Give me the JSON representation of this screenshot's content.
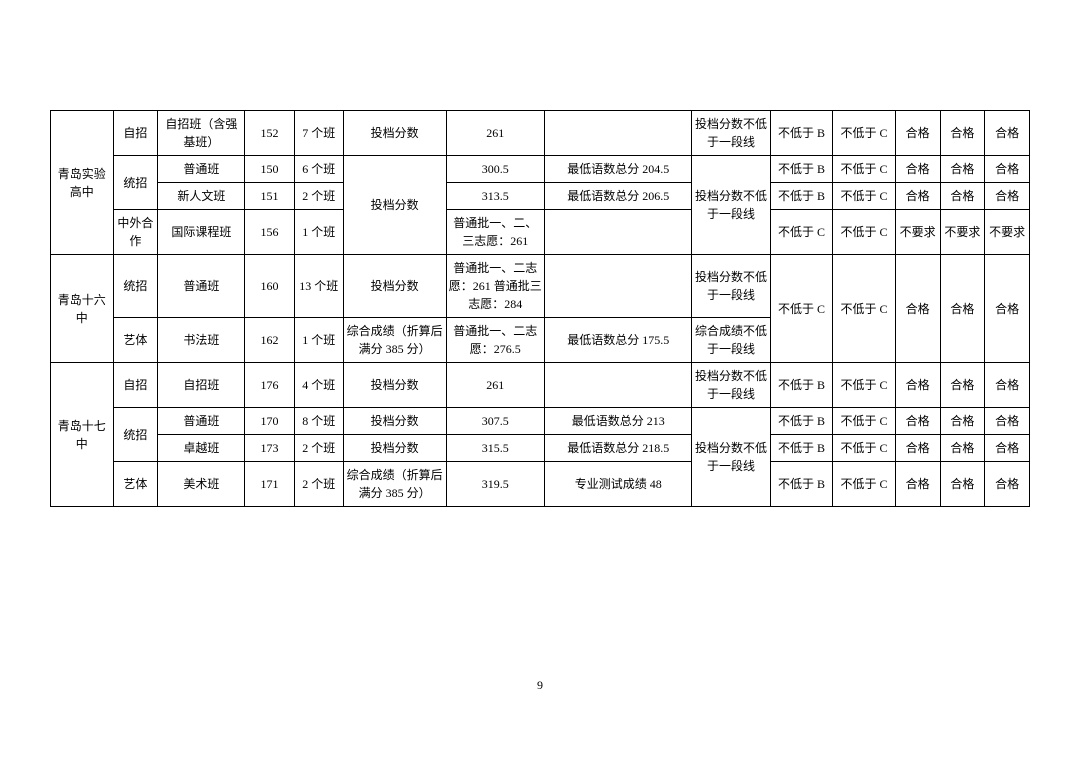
{
  "page_number": "9",
  "rows": [
    {
      "school": "青岛实验高中",
      "school_rowspan": 4,
      "type": "自招",
      "type_rowspan": 1,
      "class": "自招班（含强基班）",
      "code": "152",
      "count": "7 个班",
      "score_type": "投档分数",
      "score_type_rowspan": 1,
      "score": "261",
      "note": "",
      "req": "投档分数不低于一段线",
      "req_rowspan": 1,
      "g1": "不低于 B",
      "g1_rowspan": 1,
      "g2": "不低于 C",
      "g2_rowspan": 1,
      "p1": "合格",
      "p1_rowspan": 1,
      "p2": "合格",
      "p2_rowspan": 1,
      "p3": "合格",
      "p3_rowspan": 1
    },
    {
      "type": "统招",
      "type_rowspan": 2,
      "class": "普通班",
      "code": "150",
      "count": "6 个班",
      "score_type": "投档分数",
      "score_type_rowspan": 3,
      "score": "300.5",
      "note": "最低语数总分 204.5",
      "req": "投档分数不低于一段线",
      "req_rowspan": 3,
      "g1": "不低于 B",
      "g2": "不低于 C",
      "p1": "合格",
      "p2": "合格",
      "p3": "合格"
    },
    {
      "class": "新人文班",
      "code": "151",
      "count": "2 个班",
      "score": "313.5",
      "note": "最低语数总分 206.5",
      "g1": "不低于 B",
      "g2": "不低于 C",
      "p1": "合格",
      "p2": "合格",
      "p3": "合格"
    },
    {
      "type": "中外合作",
      "type_rowspan": 1,
      "class": "国际课程班",
      "code": "156",
      "count": "1 个班",
      "score": "普通批一、二、三志愿：261",
      "note": "",
      "g1": "不低于 C",
      "g2": "不低于 C",
      "p1": "不要求",
      "p2": "不要求",
      "p3": "不要求"
    },
    {
      "school": "青岛十六中",
      "school_rowspan": 2,
      "type": "统招",
      "type_rowspan": 1,
      "class": "普通班",
      "code": "160",
      "count": "13 个班",
      "score_type": "投档分数",
      "score_type_rowspan": 1,
      "score": "普通批一、二志愿：261 普通批三志愿：284",
      "note": "",
      "req": "投档分数不低于一段线",
      "req_rowspan": 1,
      "g1": "不低于 C",
      "g1_rowspan": 2,
      "g2": "不低于 C",
      "g2_rowspan": 2,
      "p1": "合格",
      "p1_rowspan": 2,
      "p2": "合格",
      "p2_rowspan": 2,
      "p3": "合格",
      "p3_rowspan": 2
    },
    {
      "type": "艺体",
      "type_rowspan": 1,
      "class": "书法班",
      "code": "162",
      "count": "1 个班",
      "score_type": "综合成绩（折算后满分 385 分）",
      "score_type_rowspan": 1,
      "score": "普通批一、二志愿：276.5",
      "note": "最低语数总分 175.5",
      "req": "综合成绩不低于一段线",
      "req_rowspan": 1
    },
    {
      "school": "青岛十七中",
      "school_rowspan": 4,
      "type": "自招",
      "type_rowspan": 1,
      "class": "自招班",
      "code": "176",
      "count": "4 个班",
      "score_type": "投档分数",
      "score": "261",
      "note": "",
      "req": "投档分数不低于一段线",
      "req_rowspan": 1,
      "g1": "不低于 B",
      "g2": "不低于 C",
      "p1": "合格",
      "p2": "合格",
      "p3": "合格"
    },
    {
      "type": "统招",
      "type_rowspan": 2,
      "class": "普通班",
      "code": "170",
      "count": "8 个班",
      "score_type": "投档分数",
      "score": "307.5",
      "note": "最低语数总分 213",
      "req": "投档分数不低于一段线",
      "req_rowspan": 3,
      "g1": "不低于 B",
      "g2": "不低于 C",
      "p1": "合格",
      "p2": "合格",
      "p3": "合格"
    },
    {
      "class": "卓越班",
      "code": "173",
      "count": "2 个班",
      "score_type": "投档分数",
      "score": "315.5",
      "note": "最低语数总分 218.5",
      "g1": "不低于 B",
      "g2": "不低于 C",
      "p1": "合格",
      "p2": "合格",
      "p3": "合格"
    },
    {
      "type": "艺体",
      "type_rowspan": 1,
      "class": "美术班",
      "code": "171",
      "count": "2 个班",
      "score_type": "综合成绩（折算后满分 385 分）",
      "score": "319.5",
      "note": "专业测试成绩 48",
      "g1": "不低于 B",
      "g2": "不低于 C",
      "p1": "合格",
      "p2": "合格",
      "p3": "合格"
    }
  ],
  "col_classes": [
    "c-school",
    "c-type",
    "c-class",
    "c-code",
    "c-count",
    "c-score",
    "c-score2",
    "c-note",
    "c-req",
    "c-g1",
    "c-g2",
    "c-p1",
    "c-p2",
    "c-p3"
  ],
  "fields": [
    "school",
    "type",
    "class",
    "code",
    "count",
    "score_type",
    "score",
    "note",
    "req",
    "g1",
    "g2",
    "p1",
    "p2",
    "p3"
  ]
}
